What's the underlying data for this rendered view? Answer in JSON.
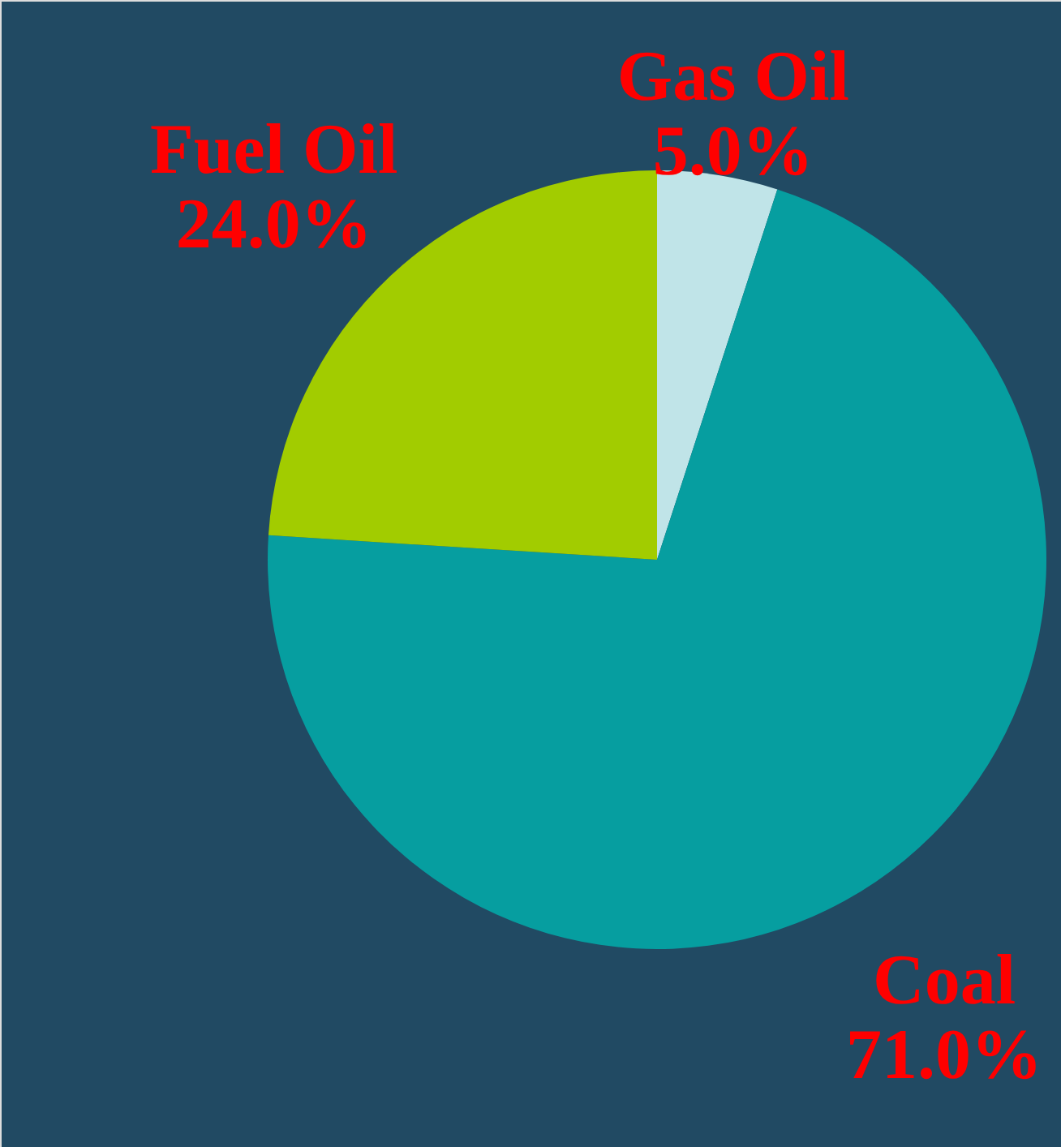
{
  "chart_data": {
    "type": "pie",
    "categories": [
      "Gas Oil",
      "Coal",
      "Fuel Oil"
    ],
    "values": [
      5,
      71,
      24
    ],
    "colors": [
      "#c0e4e8",
      "#069ea0",
      "#a2cc00"
    ],
    "value_labels": [
      "5.0%",
      "71.0%",
      "24.0%"
    ]
  }
}
